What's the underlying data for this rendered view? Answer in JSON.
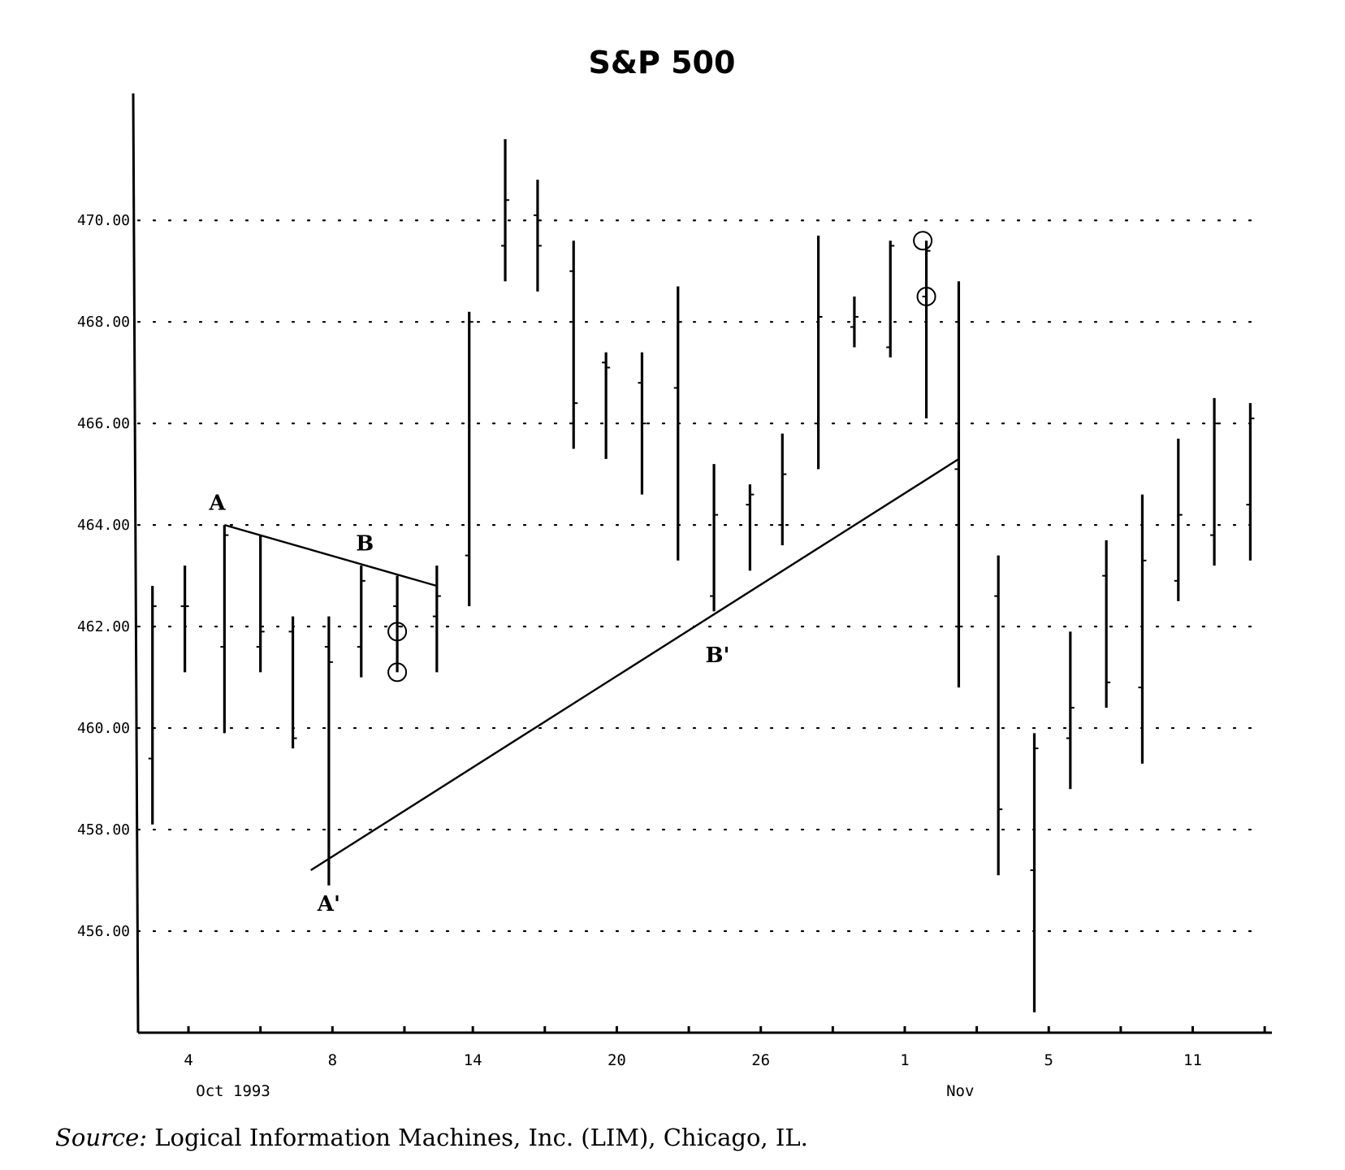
{
  "chart_data": {
    "type": "ohlc",
    "title": "S&P 500",
    "ylim": [
      454.0,
      472.5
    ],
    "yticks": [
      456,
      458,
      460,
      462,
      464,
      466,
      468,
      470
    ],
    "ytick_labels": [
      "456.00",
      "458.00",
      "460.00",
      "462.00",
      "464.00",
      "466.00",
      "468.00",
      "470.00"
    ],
    "grid": "horizontal dotted",
    "xlim": [
      0,
      31.5
    ],
    "xticks": [
      {
        "index": 1.4,
        "label": "4"
      },
      {
        "index": 5.4,
        "label": "8"
      },
      {
        "index": 9.3,
        "label": "14"
      },
      {
        "index": 13.3,
        "label": "20"
      },
      {
        "index": 17.3,
        "label": "26"
      },
      {
        "index": 21.3,
        "label": "1"
      },
      {
        "index": 25.3,
        "label": "5"
      },
      {
        "index": 29.3,
        "label": "11"
      }
    ],
    "xminor_ticks": [
      3.4,
      7.4,
      11.3,
      15.3,
      19.3,
      23.3,
      27.3,
      31.3
    ],
    "x_period_labels": [
      {
        "index": 1.4,
        "label": "Oct 1993"
      },
      {
        "index": 21.6,
        "label": "Nov"
      }
    ],
    "bars": [
      {
        "x": 0.4,
        "open": 459.4,
        "high": 462.8,
        "low": 458.1,
        "close": 462.4
      },
      {
        "x": 1.3,
        "open": 462.4,
        "high": 463.2,
        "low": 461.1,
        "close": 462.4
      },
      {
        "x": 2.4,
        "open": 461.6,
        "high": 464.0,
        "low": 459.9,
        "close": 463.8
      },
      {
        "x": 3.4,
        "open": 461.6,
        "high": 463.8,
        "low": 461.1,
        "close": 461.9
      },
      {
        "x": 4.3,
        "open": 461.9,
        "high": 462.2,
        "low": 459.6,
        "close": 459.8
      },
      {
        "x": 5.3,
        "open": 461.6,
        "high": 462.2,
        "low": 456.9,
        "close": 461.3
      },
      {
        "x": 6.2,
        "open": 461.6,
        "high": 463.2,
        "low": 461.0,
        "close": 462.9
      },
      {
        "x": 7.2,
        "open": 462.4,
        "high": 463.0,
        "low": 461.1,
        "close": 462.0
      },
      {
        "x": 8.3,
        "open": 462.2,
        "high": 463.2,
        "low": 461.1,
        "close": 462.6
      },
      {
        "x": 9.2,
        "open": 463.4,
        "high": 468.2,
        "low": 462.4,
        "close": 468.0
      },
      {
        "x": 10.2,
        "open": 469.5,
        "high": 471.6,
        "low": 468.8,
        "close": 470.4
      },
      {
        "x": 11.1,
        "open": 470.1,
        "high": 470.8,
        "low": 468.6,
        "close": 469.5
      },
      {
        "x": 12.1,
        "open": 469.0,
        "high": 469.6,
        "low": 465.5,
        "close": 466.4
      },
      {
        "x": 13.0,
        "open": 467.2,
        "high": 467.4,
        "low": 465.3,
        "close": 467.1
      },
      {
        "x": 14.0,
        "open": 466.8,
        "high": 467.4,
        "low": 464.6,
        "close": 466.0
      },
      {
        "x": 15.0,
        "open": 466.7,
        "high": 468.7,
        "low": 463.3,
        "close": 468.0
      },
      {
        "x": 16.0,
        "open": 462.6,
        "high": 465.2,
        "low": 462.3,
        "close": 464.2
      },
      {
        "x": 17.0,
        "open": 464.4,
        "high": 464.8,
        "low": 463.1,
        "close": 464.6
      },
      {
        "x": 17.9,
        "open": 464.0,
        "high": 465.8,
        "low": 463.6,
        "close": 465.0
      },
      {
        "x": 18.9,
        "open": 466.0,
        "high": 469.7,
        "low": 465.1,
        "close": 468.1
      },
      {
        "x": 19.9,
        "open": 467.9,
        "high": 468.5,
        "low": 467.5,
        "close": 468.1
      },
      {
        "x": 20.9,
        "open": 467.5,
        "high": 469.6,
        "low": 467.3,
        "close": 469.5
      },
      {
        "x": 21.9,
        "open": 468.5,
        "high": 469.6,
        "low": 466.1,
        "close": 469.4
      },
      {
        "x": 22.8,
        "open": 465.1,
        "high": 468.8,
        "low": 460.8,
        "close": 462.0
      },
      {
        "x": 23.9,
        "open": 462.6,
        "high": 463.4,
        "low": 457.1,
        "close": 458.4
      },
      {
        "x": 24.9,
        "open": 457.2,
        "high": 459.9,
        "low": 454.4,
        "close": 459.6
      },
      {
        "x": 25.9,
        "open": 459.8,
        "high": 461.9,
        "low": 458.8,
        "close": 460.4
      },
      {
        "x": 26.9,
        "open": 463.0,
        "high": 463.7,
        "low": 460.4,
        "close": 460.9
      },
      {
        "x": 27.9,
        "open": 460.8,
        "high": 464.6,
        "low": 459.3,
        "close": 463.3
      },
      {
        "x": 28.9,
        "open": 462.9,
        "high": 465.7,
        "low": 462.5,
        "close": 464.2
      },
      {
        "x": 29.9,
        "open": 463.8,
        "high": 466.5,
        "low": 463.2,
        "close": 466.0
      },
      {
        "x": 30.9,
        "open": 464.4,
        "high": 466.4,
        "low": 463.3,
        "close": 466.1
      }
    ],
    "trendlines": [
      {
        "from": {
          "x": 2.4,
          "y": 464.0
        },
        "to": {
          "x": 8.3,
          "y": 462.8
        }
      },
      {
        "from": {
          "x": 4.8,
          "y": 457.2
        },
        "to": {
          "x": 22.8,
          "y": 465.3
        }
      }
    ],
    "circles": [
      {
        "x": 7.2,
        "y": 461.9
      },
      {
        "x": 7.2,
        "y": 461.1
      },
      {
        "x": 21.8,
        "y": 469.6
      },
      {
        "x": 21.9,
        "y": 468.5
      }
    ],
    "annotations": [
      {
        "text": "A",
        "x": 2.2,
        "y": 464.3
      },
      {
        "text": "B",
        "x": 6.3,
        "y": 463.5
      },
      {
        "text": "A'",
        "x": 5.3,
        "y": 456.4
      },
      {
        "text": "B'",
        "x": 16.1,
        "y": 461.3
      }
    ],
    "source": {
      "label": "Source:",
      "text": "Logical Information Machines, Inc. (LIM), Chicago, IL."
    }
  }
}
